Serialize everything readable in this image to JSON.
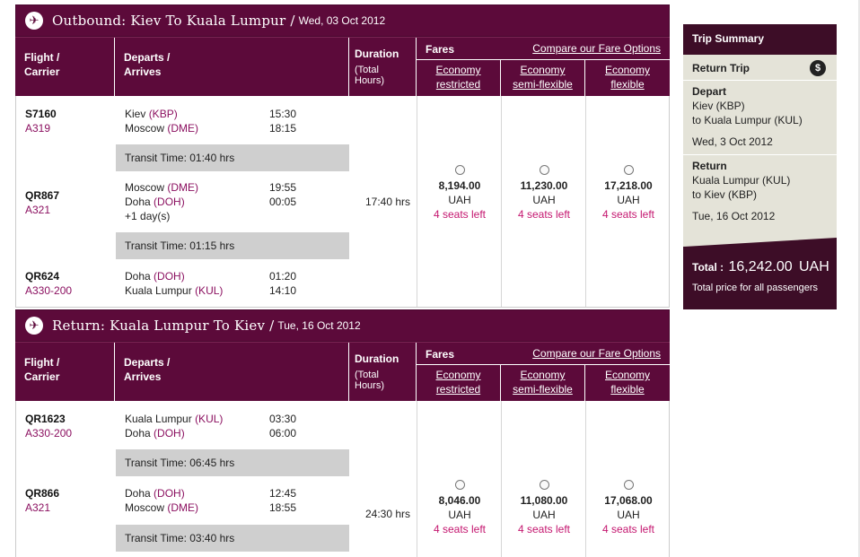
{
  "outbound": {
    "title": "Outbound: Kiev To Kuala Lumpur /",
    "date": "Wed, 03 Oct 2012",
    "headers": {
      "flight": "Flight /",
      "carrier": "Carrier",
      "departs": "Departs /",
      "arrives": "Arrives",
      "duration": "Duration",
      "total_hours": "(Total Hours)",
      "fares": "Fares",
      "compare": "Compare our Fare Options",
      "econ_restricted_1": "Economy",
      "econ_restricted_2": "restricted",
      "econ_semi_1": "Economy",
      "econ_semi_2": "semi-flexible",
      "econ_flex_1": "Economy",
      "econ_flex_2": "flexible"
    },
    "legs": [
      {
        "flight": "S7160",
        "aircraft": "A319",
        "from_city": "Kiev",
        "from_code": "(KBP)",
        "to_city": "Moscow",
        "to_code": "(DME)",
        "dep": "15:30",
        "arr": "18:15",
        "extra": ""
      },
      {
        "flight": "QR867",
        "aircraft": "A321",
        "from_city": "Moscow",
        "from_code": "(DME)",
        "to_city": "Doha",
        "to_code": "(DOH)",
        "dep": "19:55",
        "arr": "00:05",
        "extra": "+1 day(s)"
      },
      {
        "flight": "QR624",
        "aircraft": "A330-200",
        "from_city": "Doha",
        "from_code": "(DOH)",
        "to_city": "Kuala Lumpur",
        "to_code": "(KUL)",
        "dep": "01:20",
        "arr": "14:10",
        "extra": ""
      }
    ],
    "transits": [
      "Transit Time: 01:40 hrs",
      "Transit Time: 01:15 hrs"
    ],
    "duration": "17:40 hrs",
    "fares": [
      {
        "price": "8,194.00",
        "currency": "UAH",
        "seats": "4 seats left"
      },
      {
        "price": "11,230.00",
        "currency": "UAH",
        "seats": "4 seats left"
      },
      {
        "price": "17,218.00",
        "currency": "UAH",
        "seats": "4 seats left"
      }
    ]
  },
  "return": {
    "title": "Return: Kuala Lumpur To Kiev /",
    "date": "Tue, 16 Oct 2012",
    "legs": [
      {
        "flight": "QR1623",
        "aircraft": "A330-200",
        "from_city": "Kuala Lumpur",
        "from_code": "(KUL)",
        "to_city": "Doha",
        "to_code": "(DOH)",
        "dep": "03:30",
        "arr": "06:00"
      },
      {
        "flight": "QR866",
        "aircraft": "A321",
        "from_city": "Doha",
        "from_code": "(DOH)",
        "to_city": "Moscow",
        "to_code": "(DME)",
        "dep": "12:45",
        "arr": "18:55"
      }
    ],
    "transits": [
      "Transit Time: 06:45 hrs",
      "Transit Time: 03:40 hrs"
    ],
    "duration": "24:30 hrs",
    "fares": [
      {
        "price": "8,046.00",
        "currency": "UAH",
        "seats": "4 seats left"
      },
      {
        "price": "11,080.00",
        "currency": "UAH",
        "seats": "4 seats left"
      },
      {
        "price": "17,068.00",
        "currency": "UAH",
        "seats": "4 seats left"
      }
    ]
  },
  "summary": {
    "title": "Trip Summary",
    "trip_type": "Return Trip",
    "depart_label": "Depart",
    "depart_from": "Kiev (KBP)",
    "depart_to": "to Kuala Lumpur (KUL)",
    "depart_date": "Wed, 3 Oct 2012",
    "return_label": "Return",
    "return_from": "Kuala Lumpur (KUL)",
    "return_to": "to Kiev (KBP)",
    "return_date": "Tue, 16 Oct 2012",
    "total_label": "Total :",
    "total_value": "16,242.00",
    "total_currency": "UAH",
    "total_note": "Total price for all passengers"
  },
  "icons": {
    "plane": "airplane-icon",
    "dollar": "dollar-icon"
  },
  "colors": {
    "header": "#5c0a3a",
    "summary_dark": "#3d0d27",
    "seats": "#c4166f",
    "code": "#8b1060",
    "transit_bg": "#cfcfcf"
  }
}
